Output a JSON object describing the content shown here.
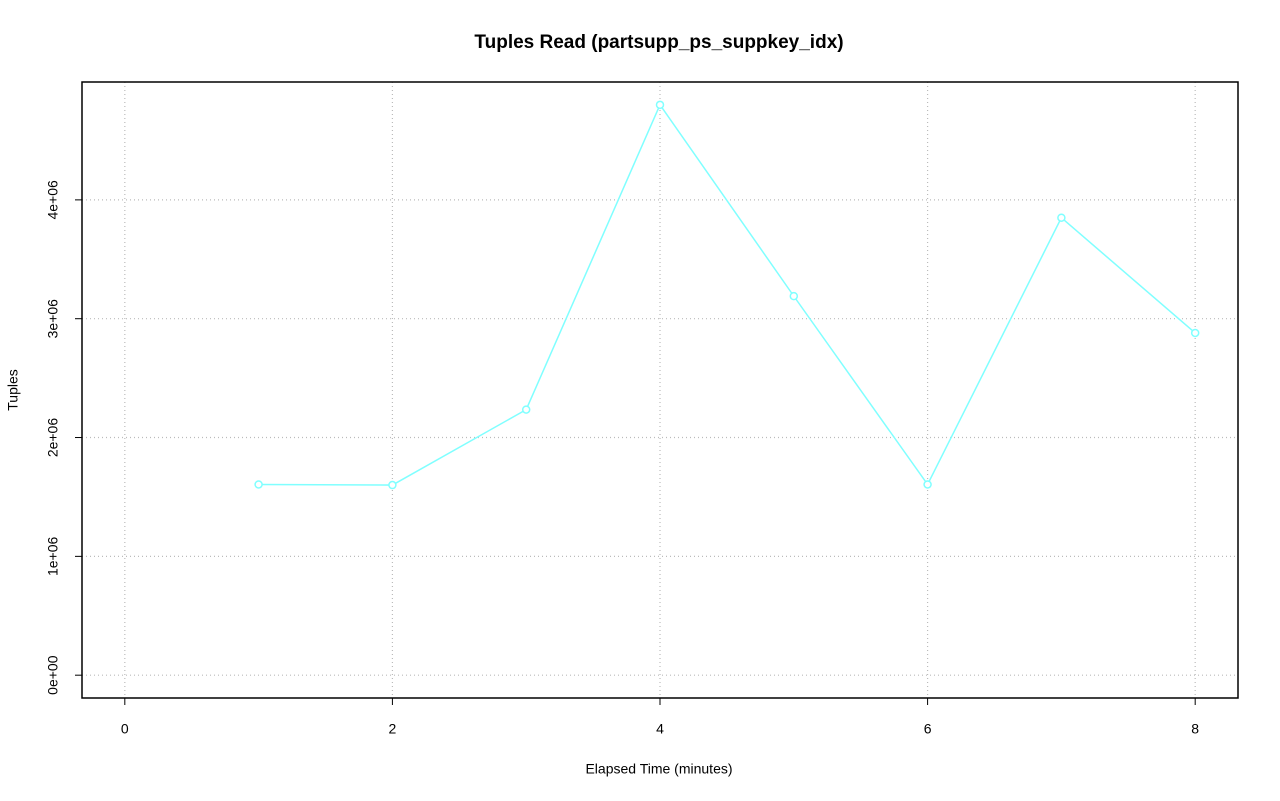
{
  "chart_data": {
    "type": "line",
    "title": "Tuples Read (partsupp_ps_suppkey_idx)",
    "x_label": "Elapsed Time (minutes)",
    "y_label": "Tuples",
    "x": [
      1,
      2,
      3,
      4,
      5,
      6,
      7,
      8
    ],
    "series": [
      {
        "name": "Tuples",
        "color": "#80ffff",
        "values": [
          1605000,
          1600000,
          2235000,
          4800000,
          3190000,
          1605000,
          3850000,
          2880000
        ]
      }
    ],
    "xlim": [
      -0.32,
      8.32
    ],
    "xticks": [
      0,
      2,
      4,
      6,
      8
    ],
    "ylim": [
      -192000,
      4992000
    ],
    "yticks": [
      {
        "value": 0,
        "label": "0e+00"
      },
      {
        "value": 1000000,
        "label": "1e+06"
      },
      {
        "value": 2000000,
        "label": "2e+06"
      },
      {
        "value": 3000000,
        "label": "3e+06"
      },
      {
        "value": 4000000,
        "label": "4e+06"
      }
    ],
    "grid": true
  }
}
